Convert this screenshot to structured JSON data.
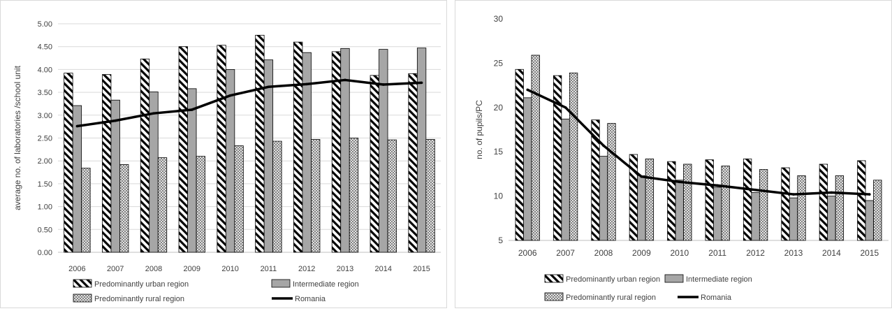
{
  "chart_data": [
    {
      "type": "bar",
      "title": "",
      "xlabel": "",
      "ylabel": "average no. of laboratories /school unit",
      "ylim": [
        0,
        5
      ],
      "yticks": [
        "0.00",
        "0.50",
        "1.00",
        "1.50",
        "2.00",
        "2.50",
        "3.00",
        "3.50",
        "4.00",
        "4.50",
        "5.00"
      ],
      "grid": true,
      "legend_position": "bottom",
      "categories": [
        "2006",
        "2007",
        "2008",
        "2009",
        "2010",
        "2011",
        "2012",
        "2013",
        "2014",
        "2015"
      ],
      "series": [
        {
          "name": "Predominantly urban region",
          "kind": "bar",
          "pattern": "diagonal-hatch",
          "values": [
            3.92,
            3.89,
            4.23,
            4.5,
            4.53,
            4.75,
            4.6,
            4.39,
            3.87,
            3.91
          ]
        },
        {
          "name": "Intermediate region",
          "kind": "bar",
          "pattern": "solid-gray",
          "color": "#a6a6a6",
          "values": [
            3.21,
            3.33,
            3.51,
            3.58,
            4.0,
            4.21,
            4.37,
            4.46,
            4.44,
            4.47
          ]
        },
        {
          "name": "Predominantly rural region",
          "kind": "bar",
          "pattern": "crosshatch",
          "values": [
            1.84,
            1.92,
            2.07,
            2.1,
            2.33,
            2.43,
            2.47,
            2.5,
            2.46,
            2.47
          ]
        },
        {
          "name": "Romania",
          "kind": "line",
          "color": "#000000",
          "values": [
            2.76,
            2.88,
            3.04,
            3.12,
            3.43,
            3.62,
            3.68,
            3.77,
            3.67,
            3.71
          ]
        }
      ]
    },
    {
      "type": "bar",
      "title": "",
      "xlabel": "",
      "ylabel": "no. of pupils/PC",
      "ylim": [
        5,
        30
      ],
      "yticks": [
        "5",
        "10",
        "15",
        "20",
        "25",
        "30"
      ],
      "grid": false,
      "legend_position": "bottom",
      "categories": [
        "2006",
        "2007",
        "2008",
        "2009",
        "2010",
        "2011",
        "2012",
        "2013",
        "2014",
        "2015"
      ],
      "series": [
        {
          "name": "Predominantly urban region",
          "kind": "bar",
          "pattern": "diagonal-hatch",
          "values": [
            24.3,
            23.6,
            18.6,
            14.7,
            13.9,
            14.1,
            14.2,
            13.2,
            13.6,
            14.0
          ]
        },
        {
          "name": "Intermediate region",
          "kind": "bar",
          "pattern": "solid-gray",
          "color": "#a6a6a6",
          "values": [
            21.1,
            18.7,
            14.5,
            12.3,
            11.8,
            11.0,
            10.4,
            9.8,
            10.0,
            9.5
          ]
        },
        {
          "name": "Predominantly rural region",
          "kind": "bar",
          "pattern": "crosshatch",
          "values": [
            25.9,
            23.9,
            18.2,
            14.2,
            13.6,
            13.4,
            13.0,
            12.3,
            12.3,
            11.8
          ]
        },
        {
          "name": "Romania",
          "kind": "line",
          "color": "#000000",
          "values": [
            22.0,
            20.0,
            15.7,
            12.2,
            11.6,
            11.2,
            10.7,
            10.2,
            10.4,
            10.2
          ]
        }
      ]
    }
  ]
}
